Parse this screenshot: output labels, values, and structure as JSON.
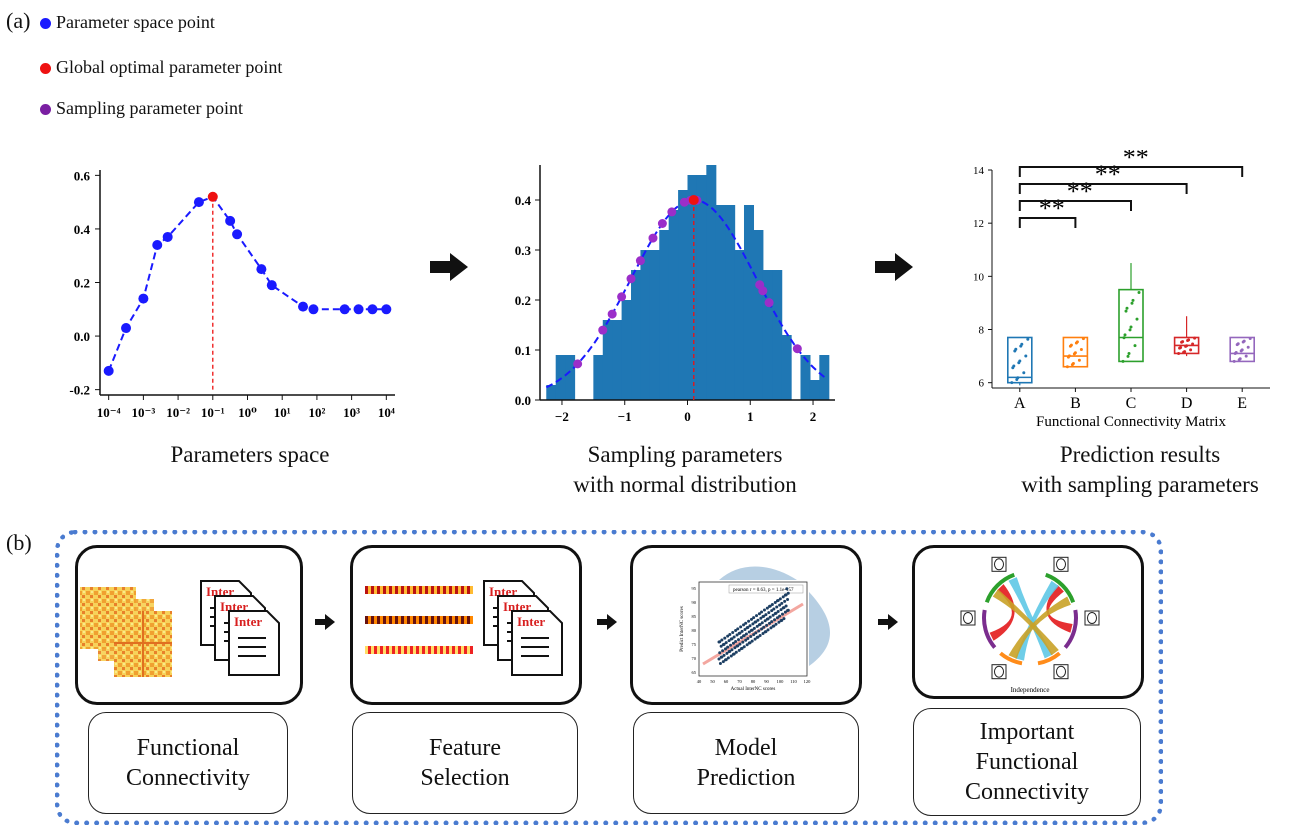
{
  "panel_a_label": "(a)",
  "panel_b_label": "(b)",
  "legend": [
    {
      "label": "Parameter space point",
      "color": "#1a1aff"
    },
    {
      "label": "Global optimal parameter point",
      "color": "#ee1111"
    },
    {
      "label": "Sampling parameter point",
      "color": "#7a1fa2"
    }
  ],
  "chart_data": [
    {
      "type": "line",
      "caption": "Parameters space",
      "x_ticks": [
        "10⁻⁴",
        "10⁻³",
        "10⁻²",
        "10⁻¹",
        "10⁰",
        "10¹",
        "10²",
        "10³",
        "10⁴"
      ],
      "y_ticks": [
        "0.6",
        "0.4",
        "0.2",
        "0.0",
        "-0.2"
      ],
      "ylim": [
        -0.22,
        0.62
      ],
      "x_log10": [
        -4,
        -3.5,
        -3,
        -2.6,
        -2.3,
        -1.4,
        -1,
        -0.5,
        -0.3,
        0.4,
        0.7,
        1.6,
        1.9,
        2.8,
        3.2,
        3.6,
        4
      ],
      "y": [
        -0.13,
        0.03,
        0.14,
        0.34,
        0.37,
        0.5,
        0.52,
        0.43,
        0.38,
        0.25,
        0.19,
        0.11,
        0.1,
        0.1,
        0.1,
        0.1,
        0.1
      ],
      "optimal_index": 6,
      "optimal_x_log10": -1
    },
    {
      "type": "bar",
      "caption": "Sampling parameters\nwith normal distribution",
      "x_ticks": [
        "−2",
        "−1",
        "0",
        "1",
        "2"
      ],
      "y_ticks": [
        "0.4",
        "0.3",
        "0.2",
        "0.1",
        "0.0"
      ],
      "xlim": [
        -2.35,
        2.35
      ],
      "ylim": [
        0,
        0.47
      ],
      "bin_width": 0.15,
      "bin_starts": [
        -2.25,
        -2.1,
        -1.95,
        -1.8,
        -1.65,
        -1.5,
        -1.35,
        -1.2,
        -1.05,
        -0.9,
        -0.75,
        -0.6,
        -0.45,
        -0.3,
        -0.15,
        0,
        0.15,
        0.3,
        0.45,
        0.6,
        0.75,
        0.9,
        1.05,
        1.2,
        1.35,
        1.5,
        1.65,
        1.8,
        1.95,
        2.1
      ],
      "bin_heights": [
        0.03,
        0.09,
        0.09,
        0.0,
        0.0,
        0.09,
        0.16,
        0.16,
        0.2,
        0.26,
        0.3,
        0.3,
        0.34,
        0.38,
        0.42,
        0.45,
        0.45,
        0.47,
        0.39,
        0.39,
        0.3,
        0.39,
        0.34,
        0.26,
        0.26,
        0.13,
        0.0,
        0.09,
        0.04,
        0.09
      ],
      "sample_x": [
        -1.75,
        -1.35,
        -1.2,
        -1.05,
        -0.9,
        -0.75,
        -0.55,
        -0.4,
        -0.25,
        -0.05,
        0.05,
        0.1,
        0.15,
        1.15,
        1.2,
        1.3,
        1.75
      ],
      "peak_x": 0.1,
      "curve_mu": 0.1,
      "curve_sigma": 1.0,
      "curve_peak": 0.4
    },
    {
      "type": "box",
      "caption": "Prediction results\nwith sampling parameters",
      "xlabel": "Functional Connectivity Matrix",
      "categories": [
        "A",
        "B",
        "C",
        "D",
        "E"
      ],
      "y_ticks": [
        "14",
        "12",
        "10",
        "8",
        "6"
      ],
      "ylim": [
        5.8,
        14
      ],
      "colors": [
        "#1f77b4",
        "#ff7f0e",
        "#2ca02c",
        "#d62728",
        "#9467bd"
      ],
      "boxes": [
        {
          "min": 5.9,
          "q1": 6.0,
          "median": 6.2,
          "q3": 7.7,
          "max": 7.7
        },
        {
          "min": 6.6,
          "q1": 6.6,
          "median": 7.0,
          "q3": 7.7,
          "max": 7.7
        },
        {
          "min": 6.8,
          "q1": 6.8,
          "median": 7.7,
          "q3": 9.5,
          "max": 10.5
        },
        {
          "min": 7.0,
          "q1": 7.1,
          "median": 7.4,
          "q3": 7.7,
          "max": 8.5
        },
        {
          "min": 6.8,
          "q1": 6.8,
          "median": 7.1,
          "q3": 7.7,
          "max": 7.7
        }
      ],
      "significance": [
        {
          "from": "A",
          "to": "B",
          "label": "**"
        },
        {
          "from": "A",
          "to": "C",
          "label": "**"
        },
        {
          "from": "A",
          "to": "D",
          "label": "**"
        },
        {
          "from": "A",
          "to": "E",
          "label": "**"
        }
      ]
    }
  ],
  "steps": [
    {
      "label": "Functional\nConnectivity",
      "doc_label": "Inter"
    },
    {
      "label": "Feature\nSelection",
      "doc_label": "Inter"
    },
    {
      "label": "Model\nPrediction",
      "plot_legend": "pearson r = 0.63, p = 1.1e-157",
      "plot_xlabel": "Actual InterNC scores",
      "plot_ylabel": "Predict InterNC scores",
      "plot_x_ticks": [
        "40",
        "50",
        "60",
        "70",
        "80",
        "90",
        "100",
        "110",
        "120"
      ],
      "plot_y_ticks": [
        "95",
        "90",
        "85",
        "80",
        "75",
        "70",
        "65"
      ]
    },
    {
      "label": "Important\nFunctional\nConnectivity",
      "circos_caption": "Independence"
    }
  ]
}
